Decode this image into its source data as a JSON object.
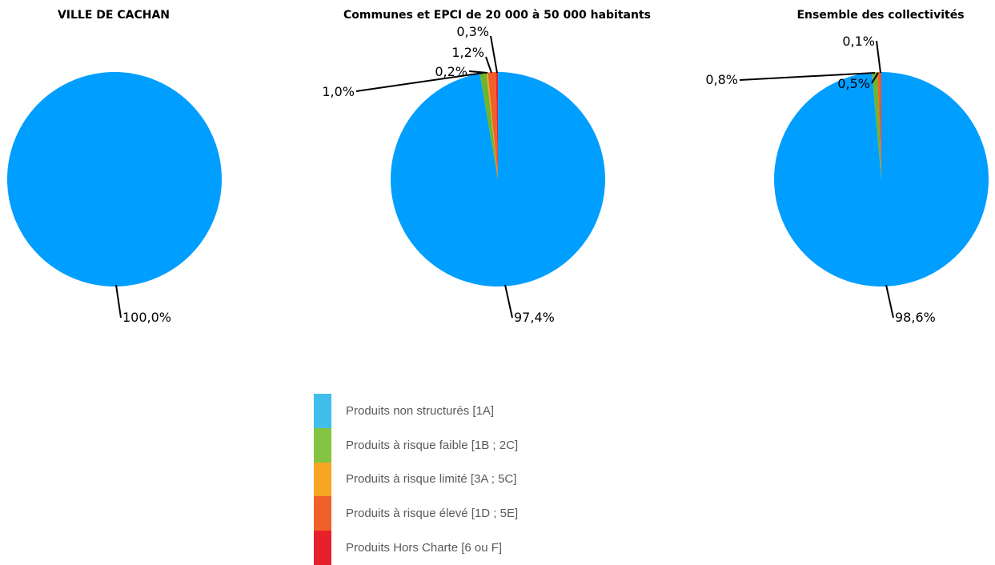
{
  "colors": {
    "non_structures": "#009EFF",
    "faible": "#6CB52D",
    "limite": "#F6A623",
    "eleve": "#F0612A",
    "hors_charte": "#E8202B"
  },
  "chart_data": [
    {
      "type": "pie",
      "title": "VILLE DE CACHAN",
      "slices": [
        {
          "category": "non_structures",
          "value": 100.0,
          "label": "100,0%"
        }
      ]
    },
    {
      "type": "pie",
      "title": "Communes et EPCI de 20 000 à 50 000 habitants",
      "slices": [
        {
          "category": "non_structures",
          "value": 97.4,
          "label": "97,4%"
        },
        {
          "category": "faible",
          "value": 1.0,
          "label": "1,0%"
        },
        {
          "category": "limite",
          "value": 0.2,
          "label": "0,2%"
        },
        {
          "category": "eleve",
          "value": 1.2,
          "label": "1,2%"
        },
        {
          "category": "hors_charte",
          "value": 0.3,
          "label": "0,3%"
        }
      ]
    },
    {
      "type": "pie",
      "title": "Ensemble des collectivités",
      "slices": [
        {
          "category": "non_structures",
          "value": 98.6,
          "label": "98,6%"
        },
        {
          "category": "faible",
          "value": 0.8,
          "label": "0,8%"
        },
        {
          "category": "eleve",
          "value": 0.5,
          "label": "0,5%"
        },
        {
          "category": "hors_charte",
          "value": 0.1,
          "label": "0,1%"
        }
      ]
    }
  ],
  "legend": {
    "items": [
      {
        "label": "Produits non structurés [1A]",
        "color": "#3FBFEA"
      },
      {
        "label": "Produits à risque faible [1B ; 2C]",
        "color": "#85C440"
      },
      {
        "label": "Produits à risque limité [3A ; 5C]",
        "color": "#F6A623"
      },
      {
        "label": "Produits à risque élevé [1D ; 5E]",
        "color": "#F0612A"
      },
      {
        "label": "Produits Hors Charte [6 ou F]",
        "color": "#E8202B"
      }
    ]
  }
}
